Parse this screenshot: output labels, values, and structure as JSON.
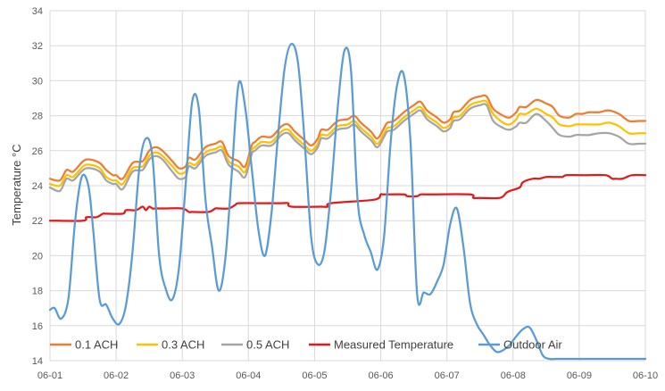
{
  "chart_data": {
    "type": "line",
    "title": "",
    "xlabel": "",
    "ylabel": "Temperature °C",
    "ylim": [
      14,
      34
    ],
    "yticks": [
      14,
      16,
      18,
      20,
      22,
      24,
      26,
      28,
      30,
      32,
      34
    ],
    "xlim": [
      0,
      9
    ],
    "xtick_labels": [
      "06-01",
      "06-02",
      "06-03",
      "06-04",
      "06-05",
      "06-06",
      "06-07",
      "06-08",
      "06-09",
      "06-10"
    ],
    "grid": "on",
    "legend": "bottom",
    "series": [
      {
        "name": "0.1 ACH",
        "color": "#ED7D31",
        "x": [
          0.0,
          0.15,
          0.25,
          0.35,
          0.5,
          0.6,
          0.75,
          0.85,
          0.95,
          1.0,
          1.1,
          1.25,
          1.4,
          1.5,
          1.6,
          1.7,
          1.85,
          1.95,
          2.05,
          2.1,
          2.2,
          2.35,
          2.5,
          2.6,
          2.7,
          2.85,
          2.95,
          3.05,
          3.1,
          3.2,
          3.35,
          3.5,
          3.6,
          3.7,
          3.85,
          3.95,
          4.05,
          4.1,
          4.2,
          4.35,
          4.5,
          4.6,
          4.7,
          4.85,
          4.95,
          5.05,
          5.1,
          5.2,
          5.35,
          5.5,
          5.6,
          5.7,
          5.85,
          5.95,
          6.05,
          6.1,
          6.2,
          6.35,
          6.5,
          6.6,
          6.7,
          6.85,
          6.95,
          7.05,
          7.1,
          7.2,
          7.35,
          7.5,
          7.6,
          7.7,
          7.85,
          7.95,
          8.05,
          8.15,
          8.3,
          8.45,
          8.6,
          8.75,
          8.9,
          9.0
        ],
        "y": [
          24.4,
          24.3,
          24.9,
          24.8,
          25.4,
          25.5,
          25.3,
          24.9,
          24.6,
          24.6,
          24.4,
          25.3,
          25.4,
          26.0,
          26.2,
          26.0,
          25.4,
          25.0,
          25.1,
          25.6,
          25.5,
          26.2,
          26.4,
          26.5,
          25.7,
          25.4,
          25.1,
          26.3,
          26.5,
          26.8,
          26.8,
          27.4,
          27.5,
          27.1,
          26.6,
          26.3,
          26.7,
          27.2,
          27.2,
          27.7,
          27.8,
          28.0,
          27.6,
          27.1,
          26.7,
          27.3,
          27.6,
          27.7,
          28.2,
          28.6,
          28.8,
          28.3,
          27.9,
          27.6,
          27.8,
          28.2,
          28.3,
          28.9,
          29.1,
          29.1,
          28.4,
          28.0,
          27.9,
          28.2,
          28.5,
          28.5,
          28.9,
          28.7,
          28.5,
          28.0,
          27.9,
          28.1,
          28.1,
          28.2,
          28.2,
          28.3,
          28.1,
          27.7,
          27.7,
          27.7
        ]
      },
      {
        "name": "0.3 ACH",
        "color": "#FFC000",
        "x": [
          0.0,
          0.15,
          0.25,
          0.35,
          0.5,
          0.6,
          0.75,
          0.85,
          0.95,
          1.0,
          1.1,
          1.25,
          1.4,
          1.5,
          1.6,
          1.7,
          1.85,
          1.95,
          2.05,
          2.1,
          2.2,
          2.35,
          2.5,
          2.6,
          2.7,
          2.85,
          2.95,
          3.05,
          3.1,
          3.2,
          3.35,
          3.5,
          3.6,
          3.7,
          3.85,
          3.95,
          4.05,
          4.1,
          4.2,
          4.35,
          4.5,
          4.6,
          4.7,
          4.85,
          4.95,
          5.05,
          5.1,
          5.2,
          5.35,
          5.5,
          5.6,
          5.7,
          5.85,
          5.95,
          6.05,
          6.1,
          6.2,
          6.35,
          6.5,
          6.6,
          6.7,
          6.85,
          6.95,
          7.05,
          7.1,
          7.2,
          7.35,
          7.5,
          7.6,
          7.7,
          7.85,
          7.95,
          8.05,
          8.15,
          8.3,
          8.45,
          8.6,
          8.75,
          8.9,
          9.0
        ],
        "y": [
          24.1,
          24.0,
          24.6,
          24.5,
          25.1,
          25.2,
          25.0,
          24.5,
          24.3,
          24.3,
          24.1,
          25.0,
          25.1,
          25.7,
          25.9,
          25.7,
          25.1,
          24.7,
          24.8,
          25.3,
          25.2,
          25.9,
          26.1,
          26.2,
          25.4,
          25.1,
          24.8,
          26.0,
          26.2,
          26.5,
          26.5,
          27.1,
          27.2,
          26.8,
          26.3,
          26.0,
          26.4,
          26.9,
          26.9,
          27.4,
          27.5,
          27.7,
          27.3,
          26.8,
          26.4,
          27.0,
          27.3,
          27.4,
          27.9,
          28.3,
          28.5,
          28.0,
          27.6,
          27.3,
          27.5,
          27.9,
          28.0,
          28.6,
          28.8,
          28.8,
          28.1,
          27.6,
          27.5,
          27.8,
          28.1,
          28.1,
          28.4,
          28.1,
          27.9,
          27.5,
          27.4,
          27.5,
          27.5,
          27.5,
          27.5,
          27.6,
          27.4,
          27.0,
          27.0,
          27.0
        ]
      },
      {
        "name": "0.5 ACH",
        "color": "#A5A5A5",
        "x": [
          0.0,
          0.15,
          0.25,
          0.35,
          0.5,
          0.6,
          0.75,
          0.85,
          0.95,
          1.0,
          1.1,
          1.25,
          1.4,
          1.5,
          1.6,
          1.7,
          1.85,
          1.95,
          2.05,
          2.1,
          2.2,
          2.35,
          2.5,
          2.6,
          2.7,
          2.85,
          2.95,
          3.05,
          3.1,
          3.2,
          3.35,
          3.5,
          3.6,
          3.7,
          3.85,
          3.95,
          4.05,
          4.1,
          4.2,
          4.35,
          4.5,
          4.6,
          4.7,
          4.85,
          4.95,
          5.05,
          5.1,
          5.2,
          5.35,
          5.5,
          5.6,
          5.7,
          5.85,
          5.95,
          6.05,
          6.1,
          6.2,
          6.35,
          6.5,
          6.6,
          6.7,
          6.85,
          6.95,
          7.05,
          7.1,
          7.2,
          7.35,
          7.5,
          7.6,
          7.7,
          7.85,
          7.95,
          8.05,
          8.15,
          8.3,
          8.45,
          8.6,
          8.75,
          8.9,
          9.0
        ],
        "y": [
          23.9,
          23.7,
          24.4,
          24.3,
          24.9,
          25.0,
          24.8,
          24.3,
          24.1,
          24.1,
          23.8,
          24.8,
          24.9,
          25.5,
          25.7,
          25.5,
          24.8,
          24.4,
          24.5,
          25.1,
          25.0,
          25.7,
          25.9,
          26.0,
          25.2,
          24.8,
          24.5,
          25.8,
          26.0,
          26.3,
          26.3,
          26.9,
          27.0,
          26.6,
          26.1,
          25.8,
          26.2,
          26.7,
          26.7,
          27.2,
          27.3,
          27.5,
          27.1,
          26.6,
          26.2,
          26.8,
          27.1,
          27.2,
          27.7,
          28.1,
          28.3,
          27.8,
          27.4,
          27.1,
          27.3,
          27.7,
          27.8,
          28.4,
          28.6,
          28.6,
          27.7,
          27.3,
          27.2,
          27.4,
          27.6,
          27.6,
          28.1,
          27.7,
          27.3,
          26.9,
          26.8,
          26.9,
          26.9,
          26.9,
          27.0,
          27.0,
          26.8,
          26.4,
          26.4,
          26.4
        ]
      },
      {
        "name": "Measured Temperature",
        "color": "#E11B1B",
        "x": [
          0.0,
          0.5,
          0.55,
          0.7,
          0.8,
          0.85,
          1.1,
          1.15,
          1.3,
          1.4,
          1.45,
          1.5,
          1.55,
          1.6,
          1.65,
          1.7,
          1.75,
          2.0,
          2.1,
          2.15,
          2.4,
          2.5,
          2.55,
          2.7,
          2.8,
          2.85,
          3.1,
          3.15,
          3.5,
          3.6,
          3.65,
          4.1,
          4.2,
          4.25,
          4.9,
          5.0,
          5.05,
          5.35,
          5.4,
          5.55,
          5.6,
          5.7,
          5.75,
          5.8,
          6.35,
          6.4,
          6.5,
          6.8,
          6.9,
          6.95,
          7.1,
          7.15,
          7.3,
          7.4,
          7.5,
          7.6,
          7.7,
          7.75,
          7.8,
          8.0,
          8.1,
          8.4,
          8.5,
          8.55,
          8.65,
          8.8,
          9.0
        ],
        "y": [
          22.0,
          22.0,
          22.2,
          22.2,
          22.4,
          22.4,
          22.4,
          22.6,
          22.6,
          22.8,
          22.6,
          22.8,
          22.7,
          22.7,
          22.7,
          22.7,
          22.7,
          22.7,
          22.5,
          22.5,
          22.5,
          22.7,
          22.7,
          22.7,
          22.9,
          23.0,
          23.0,
          23.0,
          23.0,
          23.0,
          22.8,
          22.8,
          22.8,
          23.0,
          23.2,
          23.5,
          23.5,
          23.5,
          23.4,
          23.4,
          23.5,
          23.5,
          23.5,
          23.5,
          23.5,
          23.3,
          23.3,
          23.3,
          23.6,
          23.7,
          23.9,
          24.2,
          24.4,
          24.4,
          24.5,
          24.5,
          24.5,
          24.5,
          24.6,
          24.6,
          24.6,
          24.6,
          24.4,
          24.4,
          24.4,
          24.6,
          24.6
        ]
      },
      {
        "name": "Outdoor Air",
        "color": "#5B9BD5",
        "x": [
          0.0,
          0.07,
          0.17,
          0.28,
          0.38,
          0.48,
          0.58,
          0.65,
          0.75,
          0.85,
          0.95,
          1.05,
          1.15,
          1.25,
          1.35,
          1.45,
          1.55,
          1.65,
          1.75,
          1.85,
          1.95,
          2.05,
          2.15,
          2.25,
          2.35,
          2.45,
          2.55,
          2.65,
          2.75,
          2.85,
          2.95,
          3.05,
          3.15,
          3.25,
          3.35,
          3.45,
          3.55,
          3.65,
          3.75,
          3.85,
          3.95,
          4.05,
          4.15,
          4.25,
          4.35,
          4.45,
          4.55,
          4.65,
          4.75,
          4.85,
          4.95,
          5.05,
          5.15,
          5.25,
          5.35,
          5.45,
          5.55,
          5.65,
          5.75,
          5.85,
          5.95,
          6.05,
          6.15,
          6.25,
          6.35,
          6.45,
          6.55,
          6.65,
          6.75,
          6.85,
          6.95,
          7.05,
          7.15,
          7.25,
          7.35,
          7.45,
          7.55,
          7.65,
          7.75,
          7.85,
          7.95,
          8.05,
          8.15,
          8.25,
          8.35,
          8.45,
          8.55,
          8.65,
          8.75,
          8.85,
          8.95,
          9.0
        ],
        "y": [
          16.9,
          17.0,
          16.4,
          17.6,
          22.0,
          24.5,
          24.0,
          21.6,
          17.5,
          17.2,
          16.4,
          16.1,
          17.2,
          20.3,
          25.0,
          26.7,
          25.6,
          20.0,
          18.1,
          17.5,
          19.3,
          24.0,
          28.8,
          28.4,
          23.2,
          20.5,
          18.0,
          19.8,
          24.8,
          29.8,
          28.5,
          25.0,
          21.5,
          20.0,
          22.5,
          27.0,
          30.8,
          32.1,
          31.0,
          26.5,
          21.0,
          19.5,
          20.3,
          23.8,
          28.5,
          31.7,
          30.6,
          23.2,
          21.2,
          20.2,
          19.2,
          21.1,
          26.5,
          29.8,
          30.3,
          26.5,
          17.8,
          17.9,
          17.8,
          18.5,
          19.5,
          21.8,
          22.7,
          20.5,
          17.3,
          16.1,
          15.5,
          14.9,
          14.5,
          14.6,
          14.9,
          15.4,
          15.8,
          15.9,
          15.2,
          14.3,
          14.1,
          14.1,
          14.1,
          14.1,
          14.1,
          14.1,
          14.1,
          14.1,
          14.1,
          14.1,
          14.1,
          14.1,
          14.1,
          14.1,
          14.1,
          14.1
        ]
      }
    ]
  }
}
